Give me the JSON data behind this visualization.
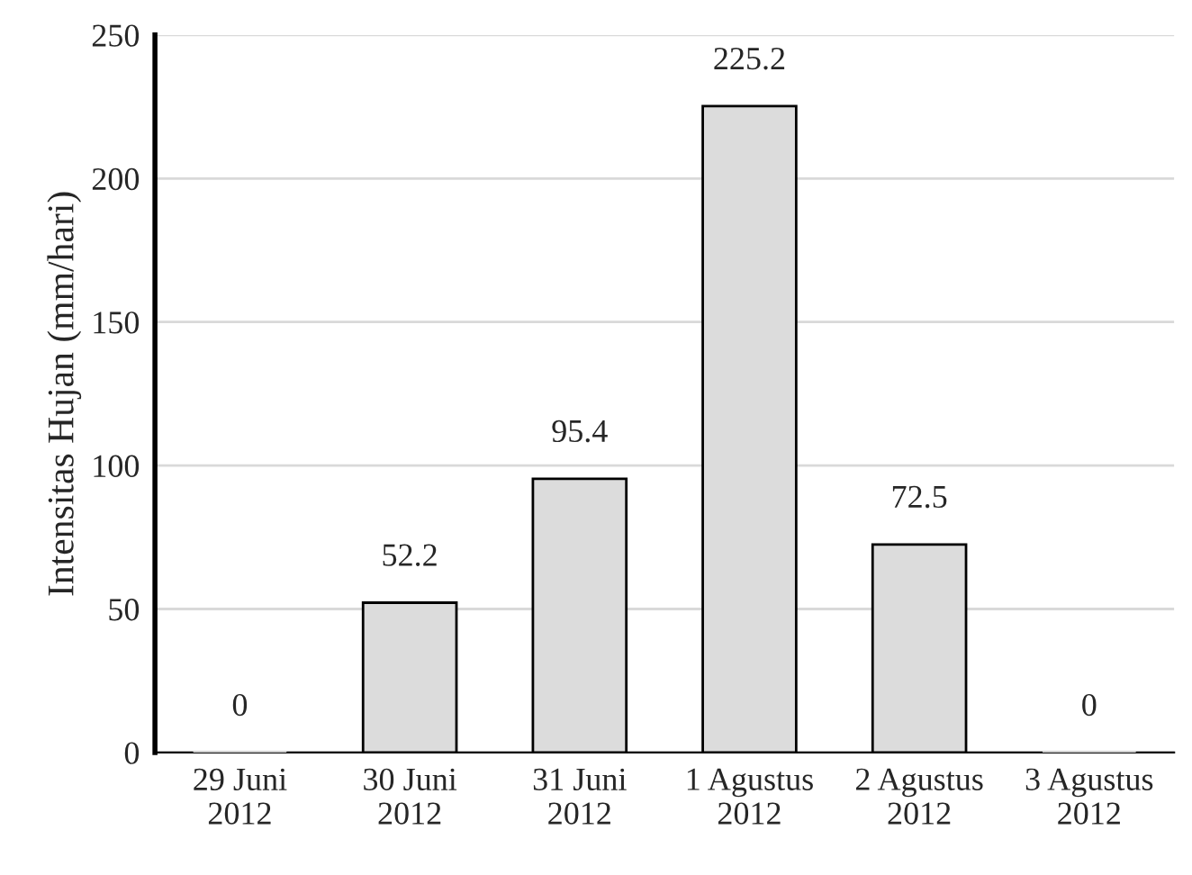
{
  "chart_data": {
    "type": "bar",
    "ylabel": "Intensitas Hujan (mm/hari)",
    "categories": [
      "29 Juni\n2012",
      "30 Juni\n2012",
      "31 Juni\n2012",
      "1 Agustus\n2012",
      "2 Agustus\n2012",
      "3 Agustus\n2012"
    ],
    "values": [
      0,
      52.2,
      95.4,
      225.2,
      72.5,
      0
    ],
    "color": "#dcdcdc",
    "ylim": [
      0,
      250
    ],
    "yticks": [
      0,
      50,
      100,
      150,
      200,
      250
    ],
    "grid": "y",
    "data_labels": true
  }
}
